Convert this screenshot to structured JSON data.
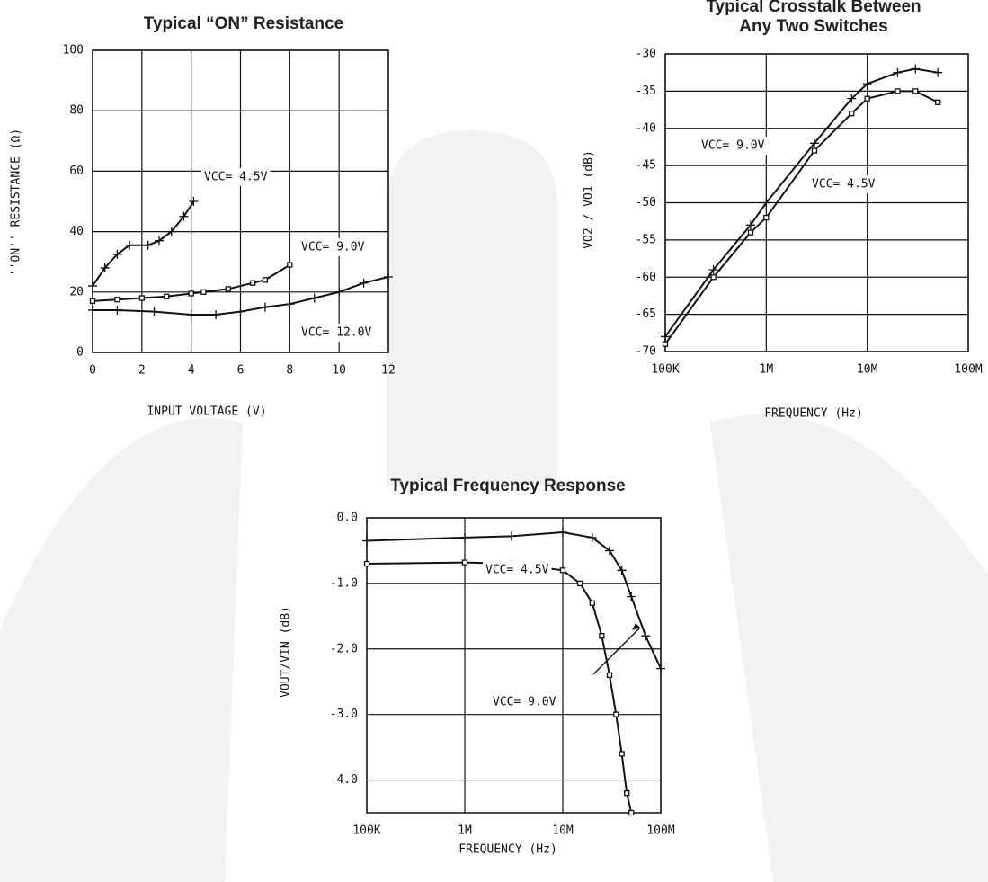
{
  "chart_data": [
    {
      "type": "line",
      "title": [
        "Typical “ON” Resistance"
      ],
      "x_label": "INPUT VOLTAGE (V)",
      "y_label": "''ON'' RESISTANCE (Ω)",
      "xlim": [
        0,
        12
      ],
      "xticks": [
        0,
        2,
        4,
        6,
        8,
        10,
        12
      ],
      "ylim": [
        0,
        100
      ],
      "yticks": [
        0,
        20,
        40,
        60,
        80,
        100
      ],
      "grid": true,
      "series": [
        {
          "name": "VCC= 4.5V",
          "color": "#111",
          "marker": "plus",
          "x": [
            0,
            0.5,
            1,
            1.5,
            2.25,
            2.7,
            3.2,
            3.7,
            4.1
          ],
          "values": [
            22,
            28,
            32.5,
            35.5,
            35.5,
            37,
            40,
            45,
            50
          ]
        },
        {
          "name": "VCC= 9.0V",
          "color": "#111",
          "marker": "square",
          "x": [
            0,
            1,
            2,
            3,
            4,
            4.5,
            5.5,
            6.5,
            7,
            8
          ],
          "values": [
            17,
            17.5,
            18,
            18.5,
            19.5,
            20,
            21,
            23,
            24,
            29
          ]
        },
        {
          "name": "VCC= 12.0V",
          "color": "#111",
          "marker": "plus",
          "x": [
            0,
            1,
            2.5,
            4,
            5,
            6,
            7,
            8,
            9,
            10,
            11,
            12
          ],
          "values": [
            14,
            14,
            13.5,
            12.5,
            12.5,
            13.5,
            15,
            16,
            18,
            20,
            23,
            25
          ]
        }
      ]
    },
    {
      "type": "line",
      "title": [
        "Typical Crosstalk Between",
        "Any Two Switches"
      ],
      "x_label": "FREQUENCY (Hz)",
      "y_label": "VO2 / VO1 (dB)",
      "xscale": "log",
      "xlim": [
        100000,
        100000000
      ],
      "xticks": [
        {
          "value": 100000,
          "label": "100K"
        },
        {
          "value": 1000000,
          "label": "1M"
        },
        {
          "value": 10000000,
          "label": "10M"
        },
        {
          "value": 100000000,
          "label": "100M"
        }
      ],
      "ylim": [
        -70,
        -30
      ],
      "yticks": [
        -30,
        -35,
        -40,
        -45,
        -50,
        -55,
        -60,
        -65,
        -70
      ],
      "grid": true,
      "series": [
        {
          "name": "VCC= 9.0V",
          "color": "#111",
          "marker": "plus",
          "x": [
            100000,
            300000,
            700000,
            1000000,
            3000000,
            7000000,
            10000000,
            20000000,
            30000000,
            50000000
          ],
          "values": [
            -68,
            -59,
            -53,
            -50,
            -42,
            -36,
            -34,
            -32.5,
            -32,
            -32.5
          ]
        },
        {
          "name": "VCC= 4.5V",
          "color": "#111",
          "marker": "square",
          "x": [
            100000,
            300000,
            700000,
            1000000,
            3000000,
            7000000,
            10000000,
            20000000,
            30000000,
            50000000
          ],
          "values": [
            -69,
            -60,
            -54,
            -52,
            -43,
            -38,
            -36,
            -35,
            -35,
            -36.5
          ]
        }
      ]
    },
    {
      "type": "line",
      "title": [
        "Typical Frequency Response"
      ],
      "x_label": "FREQUENCY (Hz)",
      "y_label": "VOUT/VIN (dB)",
      "xscale": "log",
      "xlim": [
        100000,
        100000000
      ],
      "xticks": [
        {
          "value": 100000,
          "label": "100K"
        },
        {
          "value": 1000000,
          "label": "1M"
        },
        {
          "value": 10000000,
          "label": "10M"
        },
        {
          "value": 100000000,
          "label": "100M"
        }
      ],
      "ylim": [
        -4.5,
        0
      ],
      "yticks": [
        {
          "value": 0,
          "label": "0.0"
        },
        {
          "value": -1,
          "label": "-1.0"
        },
        {
          "value": -2,
          "label": "-2.0"
        },
        {
          "value": -3,
          "label": "-3.0"
        },
        {
          "value": -4,
          "label": "-4.0"
        }
      ],
      "grid": true,
      "series": [
        {
          "name": "VCC= 9.0V",
          "color": "#111",
          "marker": "plus",
          "x": [
            100000,
            1000000,
            3000000,
            10000000,
            20000000,
            30000000,
            40000000,
            50000000,
            70000000,
            100000000
          ],
          "values": [
            -0.35,
            -0.3,
            -0.28,
            -0.22,
            -0.3,
            -0.5,
            -0.8,
            -1.2,
            -1.8,
            -2.3
          ]
        },
        {
          "name": "VCC= 4.5V",
          "color": "#111",
          "marker": "square",
          "x": [
            100000,
            1000000,
            3000000,
            10000000,
            15000000,
            20000000,
            25000000,
            30000000,
            35000000,
            40000000,
            45000000,
            50000000
          ],
          "values": [
            -0.7,
            -0.68,
            -0.7,
            -0.8,
            -1.0,
            -1.3,
            -1.8,
            -2.4,
            -3.0,
            -3.6,
            -4.2,
            -4.5
          ]
        }
      ]
    }
  ]
}
